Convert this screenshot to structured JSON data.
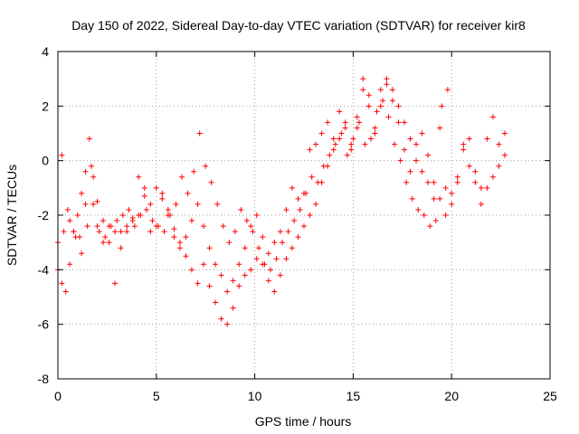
{
  "chart_data": {
    "type": "scatter",
    "title": "Day 150 of 2022, Sidereal Day-to-day VTEC variation (SDTVAR) for receiver kir8",
    "xlabel": "GPS time / hours",
    "ylabel": "SDTVAR / TECUs",
    "xlim": [
      0,
      25
    ],
    "ylim": [
      -8,
      4
    ],
    "xticks": [
      0,
      5,
      10,
      15,
      20,
      25
    ],
    "yticks": [
      -8,
      -6,
      -4,
      -2,
      0,
      2,
      4
    ],
    "xtick_labels": [
      "0",
      "5",
      "10",
      "15",
      "20",
      "25"
    ],
    "ytick_labels": [
      "-8",
      "-6",
      "-4",
      "-2",
      "0",
      "2",
      "4"
    ],
    "grid": true,
    "marker": "+",
    "series": [
      {
        "name": "kir8",
        "color": "#ff0000",
        "tracks": [
          {
            "x": [
              0.0,
              0.2,
              0.4,
              0.6,
              0.8,
              1.0,
              1.2,
              1.4,
              1.6,
              1.8,
              2.0,
              2.3,
              2.6,
              2.9,
              3.2,
              3.5,
              3.8,
              4.1,
              4.4,
              4.7,
              5.0,
              5.3,
              5.6,
              5.9,
              6.2,
              6.5,
              6.8,
              7.1,
              7.4,
              7.7,
              8.0,
              8.3,
              8.6,
              8.9,
              9.2,
              9.5,
              9.8,
              10.1,
              10.4,
              10.7,
              11.0,
              11.3,
              11.6,
              11.9,
              12.2,
              12.5,
              12.8,
              13.1,
              13.4,
              13.7,
              14.0,
              14.3,
              14.6,
              14.9,
              15.2,
              15.5,
              15.8,
              16.1,
              16.4,
              16.7,
              17.0,
              17.3,
              17.6,
              17.9,
              18.2,
              18.5,
              18.8,
              19.1,
              19.4,
              19.7,
              20.0,
              20.3,
              20.6,
              20.9,
              21.2,
              21.5,
              21.8,
              22.1,
              22.4,
              22.7
            ],
            "y": [
              -4.0,
              -4.5,
              -4.8,
              -3.8,
              -2.6,
              -2.0,
              -1.2,
              -0.4,
              0.8,
              -0.6,
              -1.5,
              -2.2,
              -3.0,
              -4.5,
              -3.2,
              -2.6,
              -2.1,
              -2.0,
              -1.3,
              -1.6,
              -1.0,
              -1.4,
              -2.0,
              -2.5,
              -3.0,
              -3.5,
              -4.0,
              -4.5,
              -3.8,
              -4.6,
              -5.2,
              -5.8,
              -6.0,
              -5.4,
              -4.6,
              -4.2,
              -4.0,
              -3.6,
              -3.8,
              -4.4,
              -4.8,
              -4.2,
              -3.6,
              -3.2,
              -2.8,
              -2.4,
              -2.0,
              -1.6,
              -0.8,
              -0.2,
              0.4,
              0.8,
              1.2,
              0.6,
              1.6,
              2.6,
              2.0,
              1.0,
              2.0,
              2.8,
              2.2,
              1.4,
              0.4,
              -0.4,
              0.6,
              1.0,
              0.2,
              -0.8,
              -1.4,
              -1.0,
              -1.6,
              -0.6,
              0.4,
              -0.2,
              -0.8,
              -1.6,
              -1.0,
              -0.6,
              -0.2,
              0.2
            ]
          },
          {
            "x": [
              0.0,
              0.3,
              0.6,
              0.9,
              1.2,
              1.5,
              1.8,
              2.1,
              2.4,
              2.7,
              3.0,
              3.3,
              3.6,
              3.9,
              4.2,
              4.5,
              4.8,
              5.1,
              5.4,
              5.7,
              6.0,
              6.3,
              6.6,
              6.9,
              7.2,
              7.5,
              7.8,
              8.1,
              8.4,
              8.7,
              9.0,
              9.3,
              9.6,
              9.9,
              10.2,
              10.5,
              10.8,
              11.1,
              11.4,
              11.7,
              12.0,
              12.3,
              12.6,
              12.9,
              13.2,
              13.5,
              13.8,
              14.1,
              14.4,
              14.7,
              15.0,
              15.3,
              15.6,
              15.9,
              16.2,
              16.5,
              16.8,
              17.1,
              17.4,
              17.7,
              18.0,
              18.3,
              18.6,
              18.9,
              19.2,
              19.5,
              19.8
            ],
            "y": [
              -3.0,
              -2.6,
              -2.2,
              -2.8,
              -3.4,
              -2.4,
              -1.6,
              -2.6,
              -2.8,
              -2.4,
              -2.2,
              -2.0,
              -1.8,
              -2.4,
              -2.0,
              -1.8,
              -2.2,
              -2.4,
              -2.6,
              -2.0,
              -1.6,
              -0.6,
              -1.2,
              -0.4,
              1.0,
              -0.2,
              -0.8,
              -1.6,
              -2.4,
              -3.0,
              -2.6,
              -1.8,
              -2.2,
              -2.6,
              -3.2,
              -3.8,
              -4.0,
              -3.6,
              -3.0,
              -2.6,
              -2.2,
              -1.8,
              -1.2,
              -0.6,
              -0.8,
              -0.2,
              0.2,
              0.6,
              1.0,
              0.2,
              0.8,
              1.4,
              0.6,
              0.8,
              1.8,
              2.2,
              1.6,
              0.6,
              0.0,
              -0.8,
              -1.4,
              -1.8,
              -2.0,
              -2.4,
              -2.2,
              2.0,
              2.6
            ]
          },
          {
            "x": [
              0.2,
              0.5,
              0.8,
              1.1,
              1.4,
              1.7,
              2.0,
              2.3,
              2.6,
              2.9,
              3.2,
              3.5,
              3.8,
              4.1,
              4.4,
              4.7,
              5.0,
              5.3,
              5.6,
              5.9,
              6.2,
              6.5,
              6.8,
              7.1,
              7.4,
              7.7,
              8.0,
              8.3,
              8.6,
              8.9,
              9.2,
              9.5,
              9.8,
              10.1,
              10.4,
              10.7,
              11.0,
              11.3,
              11.6,
              11.9,
              12.2,
              12.5,
              12.8,
              13.1,
              13.4,
              13.7,
              14.0,
              14.3,
              14.6,
              14.9,
              15.2,
              15.5,
              15.8,
              16.1,
              16.4,
              16.7,
              17.0,
              17.3,
              17.6,
              17.9,
              18.2,
              18.5,
              18.8,
              19.1,
              19.4,
              19.7,
              20.0,
              20.3,
              20.6,
              20.9,
              21.2,
              21.5,
              21.8,
              22.1,
              22.4,
              22.7
            ],
            "y": [
              0.2,
              -1.8,
              -2.6,
              -2.8,
              -1.6,
              -0.2,
              -2.4,
              -3.0,
              -2.4,
              -2.6,
              -2.6,
              -2.4,
              -2.2,
              -0.6,
              -1.0,
              -2.6,
              -2.4,
              -1.2,
              -1.8,
              -2.8,
              -3.2,
              -2.8,
              -2.2,
              -1.6,
              -2.4,
              -3.2,
              -3.8,
              -4.2,
              -4.8,
              -4.4,
              -3.8,
              -3.2,
              -2.4,
              -2.0,
              -2.8,
              -3.4,
              -3.0,
              -2.6,
              -1.8,
              -1.0,
              -1.4,
              -1.2,
              0.4,
              0.6,
              1.0,
              1.4,
              0.8,
              1.8,
              1.4,
              0.4,
              1.2,
              3.0,
              2.4,
              1.2,
              2.6,
              3.0,
              2.6,
              2.0,
              1.4,
              0.8,
              0.0,
              -0.4,
              -0.8,
              -1.4,
              1.2,
              -2.0,
              -1.2,
              -0.8,
              0.6,
              0.8,
              -0.4,
              -1.0,
              0.8,
              1.6,
              0.6,
              1.0
            ]
          }
        ]
      }
    ]
  }
}
